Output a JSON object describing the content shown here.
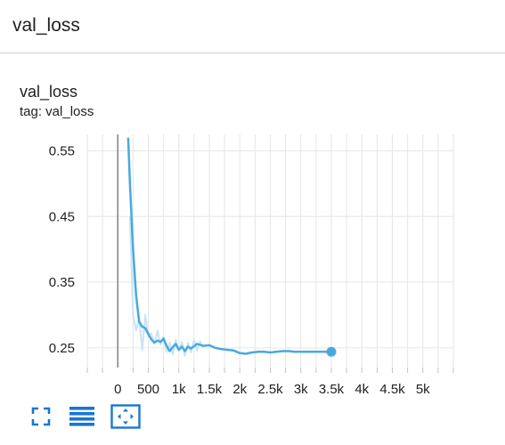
{
  "section": {
    "title": "val_loss"
  },
  "card": {
    "title": "val_loss",
    "tag": "tag: val_loss"
  },
  "colors": {
    "line": "#4aa8e0",
    "line_raw": "#c9e4f5",
    "toolbar_icon": "#1976d2"
  },
  "toolbar": {
    "buttons": [
      {
        "name": "expand-chart-button",
        "icon": "expand-icon"
      },
      {
        "name": "toggle-log-scale-button",
        "icon": "lines-icon"
      },
      {
        "name": "fit-domain-button",
        "icon": "fit-to-data-icon"
      }
    ]
  },
  "chart_data": {
    "type": "line",
    "title": "",
    "xlabel": "",
    "ylabel": "",
    "xlim": [
      -500,
      5500
    ],
    "ylim": [
      0.22,
      0.575
    ],
    "x_ticks": [
      0,
      500,
      1000,
      1500,
      2000,
      2500,
      3000,
      3500,
      4000,
      4500,
      5000
    ],
    "x_tick_labels": [
      "0",
      "500",
      "1k",
      "1.5k",
      "2k",
      "2.5k",
      "3k",
      "3.5k",
      "4k",
      "4.5k",
      "5k"
    ],
    "y_ticks": [
      0.25,
      0.35,
      0.45,
      0.55
    ],
    "y_tick_labels": [
      "0.25",
      "0.35",
      "0.45",
      "0.55"
    ],
    "grid": true,
    "series": [
      {
        "role": "smoothed",
        "x": [
          170,
          200,
          250,
          300,
          350,
          400,
          450,
          500,
          550,
          600,
          650,
          700,
          750,
          800,
          850,
          900,
          950,
          1000,
          1050,
          1100,
          1150,
          1200,
          1300,
          1400,
          1500,
          1600,
          1700,
          1800,
          1900,
          2000,
          2100,
          2200,
          2300,
          2400,
          2500,
          2600,
          2700,
          2800,
          2900,
          3000,
          3100,
          3200,
          3300,
          3400,
          3500
        ],
        "y": [
          0.57,
          0.5,
          0.4,
          0.33,
          0.29,
          0.282,
          0.28,
          0.271,
          0.263,
          0.258,
          0.261,
          0.259,
          0.264,
          0.253,
          0.245,
          0.251,
          0.256,
          0.247,
          0.252,
          0.245,
          0.252,
          0.249,
          0.256,
          0.253,
          0.254,
          0.25,
          0.248,
          0.247,
          0.246,
          0.242,
          0.241,
          0.243,
          0.244,
          0.244,
          0.243,
          0.244,
          0.245,
          0.245,
          0.244,
          0.244,
          0.244,
          0.244,
          0.244,
          0.244,
          0.244
        ]
      },
      {
        "role": "raw",
        "x": [
          200,
          250,
          300,
          350,
          400,
          450,
          500,
          550,
          600,
          650,
          700,
          750,
          800,
          850,
          900,
          950,
          1000,
          1050,
          1100,
          1150,
          1200,
          1250,
          1300,
          1350,
          1400
        ],
        "y": [
          0.45,
          0.3,
          0.276,
          0.296,
          0.247,
          0.3,
          0.27,
          0.272,
          0.256,
          0.276,
          0.255,
          0.267,
          0.244,
          0.258,
          0.24,
          0.262,
          0.246,
          0.259,
          0.238,
          0.258,
          0.243,
          0.262,
          0.246,
          0.26,
          0.249
        ]
      }
    ],
    "last_point": {
      "x": 3500,
      "y": 0.244
    }
  }
}
